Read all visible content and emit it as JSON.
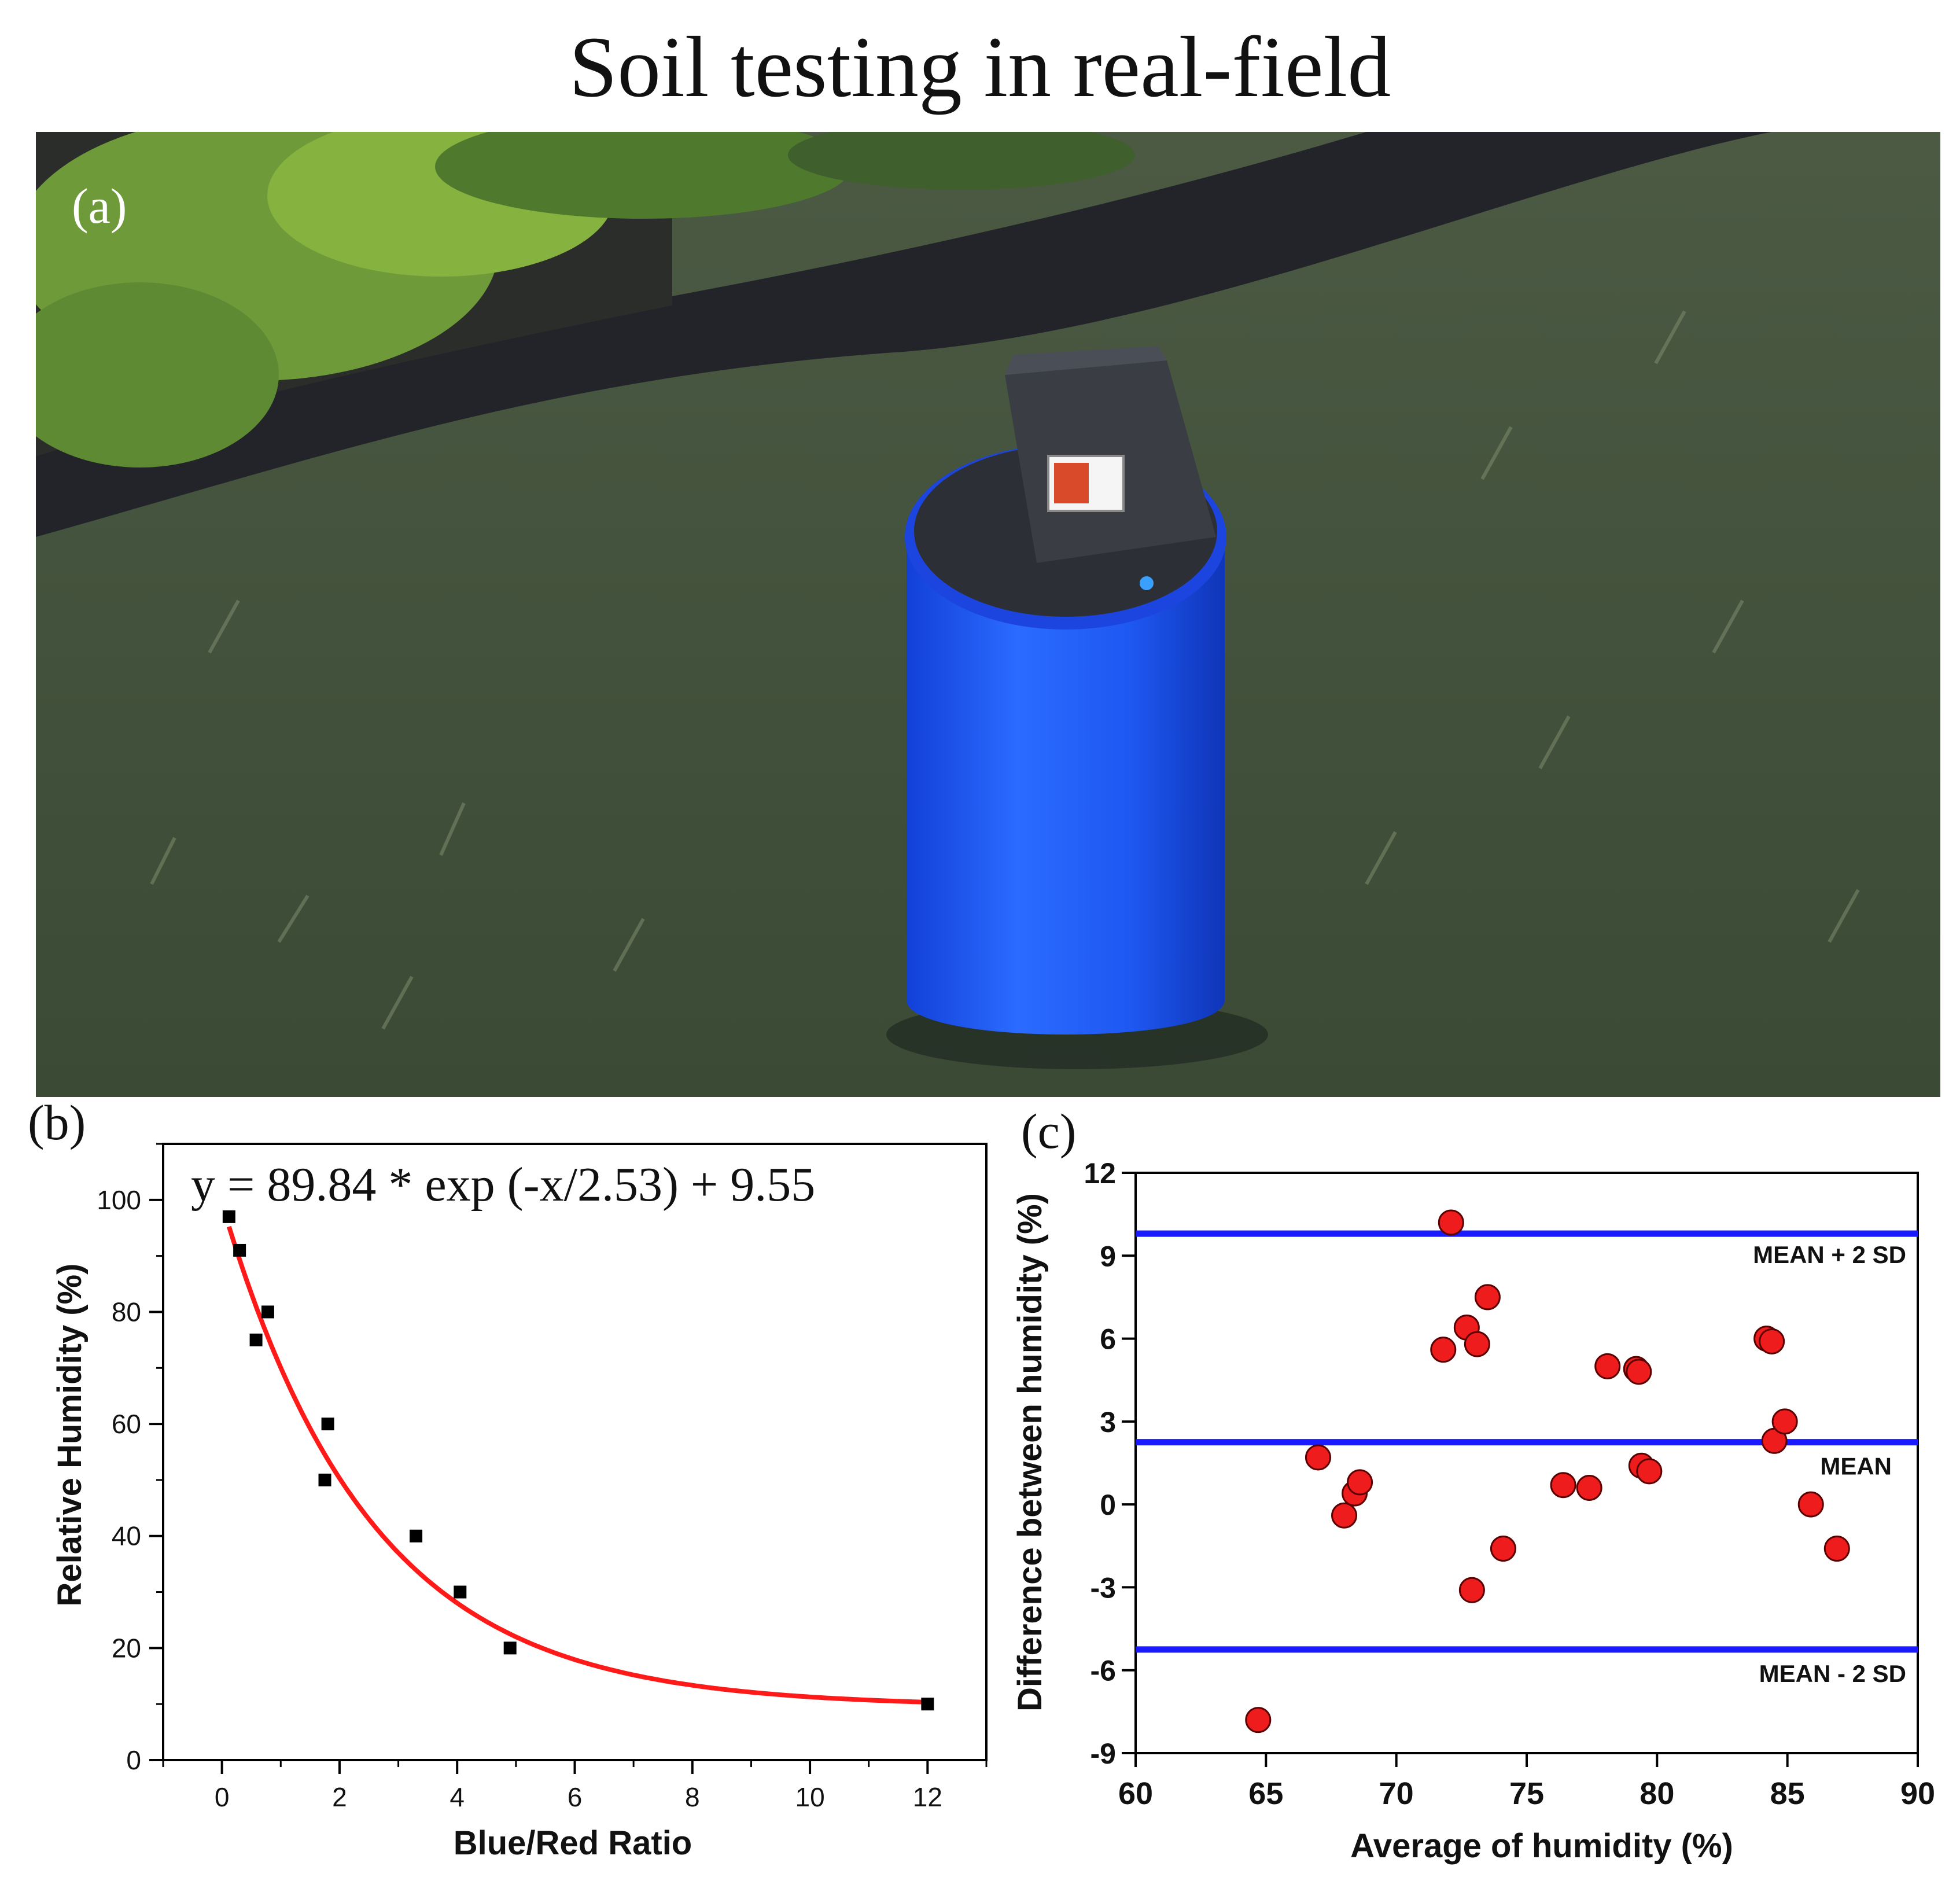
{
  "title": "Soil testing in real-field",
  "panels": {
    "a": {
      "label": "(a)"
    },
    "b": {
      "label": "(b)"
    },
    "c": {
      "label": "(c)"
    }
  },
  "colors": {
    "fit_curve": "#ff1a1a",
    "reference_lines": "#1a1aff",
    "scatter_fill": "#ee1c1c",
    "square_marker": "#000000",
    "device_body": "#1f5cff",
    "device_lid": "#2e3136"
  },
  "chart_data": [
    {
      "id": "b",
      "type": "scatter",
      "xlabel": "Blue/Red Ratio",
      "ylabel": "Relative Humidity (%)",
      "xlim": [
        -1,
        13
      ],
      "ylim": [
        0,
        110
      ],
      "xticks": [
        0,
        2,
        4,
        6,
        8,
        10,
        12
      ],
      "yticks": [
        0,
        20,
        40,
        60,
        80,
        100
      ],
      "annotation": "y = 89.84 * exp (-x/2.53) + 9.55",
      "fit": {
        "a": 89.84,
        "t": 2.53,
        "c": 9.55,
        "x_range": [
          0.12,
          12
        ]
      },
      "points": [
        {
          "x": 0.12,
          "y": 97
        },
        {
          "x": 0.3,
          "y": 91
        },
        {
          "x": 0.58,
          "y": 75
        },
        {
          "x": 0.78,
          "y": 80
        },
        {
          "x": 1.75,
          "y": 50
        },
        {
          "x": 1.8,
          "y": 60
        },
        {
          "x": 3.3,
          "y": 40
        },
        {
          "x": 4.05,
          "y": 30
        },
        {
          "x": 4.9,
          "y": 20
        },
        {
          "x": 12,
          "y": 10
        }
      ]
    },
    {
      "id": "c",
      "type": "scatter",
      "xlabel": "Average of humidity (%)",
      "ylabel": "Difference between humidity (%)",
      "xlim": [
        60,
        90
      ],
      "ylim": [
        -9,
        12
      ],
      "xticks": [
        60,
        65,
        70,
        75,
        80,
        85,
        90
      ],
      "yticks": [
        -9,
        -6,
        -3,
        0,
        3,
        6,
        9,
        12
      ],
      "reference_lines": [
        {
          "label": "MEAN + 2 SD",
          "y": 9.8
        },
        {
          "label": "MEAN",
          "y": 2.25
        },
        {
          "label": "MEAN - 2 SD",
          "y": -5.25
        }
      ],
      "points": [
        {
          "x": 64.7,
          "y": -7.8
        },
        {
          "x": 67.0,
          "y": 1.7
        },
        {
          "x": 68.0,
          "y": -0.4
        },
        {
          "x": 68.4,
          "y": 0.4
        },
        {
          "x": 68.6,
          "y": 0.8
        },
        {
          "x": 71.8,
          "y": 5.6
        },
        {
          "x": 72.1,
          "y": 10.2
        },
        {
          "x": 72.7,
          "y": 6.4
        },
        {
          "x": 72.9,
          "y": -3.1
        },
        {
          "x": 73.1,
          "y": 5.8
        },
        {
          "x": 73.5,
          "y": 7.5
        },
        {
          "x": 74.1,
          "y": -1.6
        },
        {
          "x": 76.4,
          "y": 0.7
        },
        {
          "x": 77.4,
          "y": 0.6
        },
        {
          "x": 78.1,
          "y": 5.0
        },
        {
          "x": 79.2,
          "y": 4.9
        },
        {
          "x": 79.3,
          "y": 4.8
        },
        {
          "x": 79.4,
          "y": 1.4
        },
        {
          "x": 79.7,
          "y": 1.2
        },
        {
          "x": 84.2,
          "y": 6.0
        },
        {
          "x": 84.4,
          "y": 5.9
        },
        {
          "x": 84.5,
          "y": 2.3
        },
        {
          "x": 84.9,
          "y": 3.0
        },
        {
          "x": 85.9,
          "y": 0.0
        },
        {
          "x": 86.9,
          "y": -1.6
        }
      ]
    }
  ]
}
